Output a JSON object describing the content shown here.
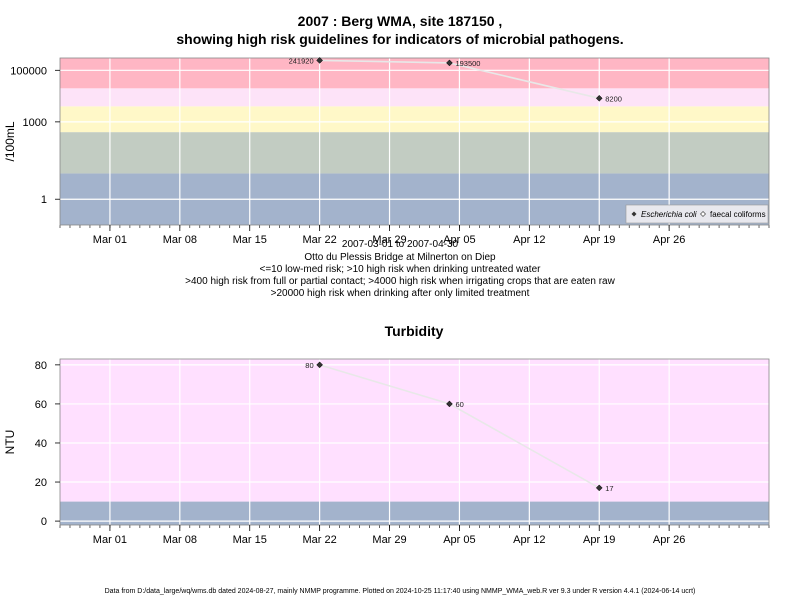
{
  "header": {
    "title_line1": "2007 : Berg WMA, site 187150 ,",
    "title_line2": "showing high risk guidelines for indicators of microbial pathogens."
  },
  "captions": [
    "2007-03-01 to 2007-04-30",
    "Otto du Plessis Bridge at Milnerton on Diep",
    "<=10 low-med risk; >10 high risk when drinking untreated water",
    ">400 high risk from full or partial contact; >4000 high risk when irrigating crops that are eaten raw",
    ">20000 high risk when drinking after only limited treatment"
  ],
  "footer": "Data from D:/data_large/wq/wms.db dated 2024-08-27, mainly NMMP programme. Plotted on 2024-10-25 11:17:40 using NMMP_WMA_web.R ver 9.3 under R version 4.4.1 (2024-06-14 ucrt)",
  "chart_data": [
    {
      "type": "line",
      "title": "",
      "ylabel": "/100mL",
      "y_scale": "log10",
      "ylim": [
        0.1,
        300000
      ],
      "xlim": [
        "2007-02-24",
        "2007-05-06"
      ],
      "x_ticks": [
        "2007-03-01",
        "2007-03-08",
        "2007-03-15",
        "2007-03-22",
        "2007-03-29",
        "2007-04-05",
        "2007-04-12",
        "2007-04-19",
        "2007-04-26"
      ],
      "x_tick_labels": [
        "Mar 01",
        "Mar 08",
        "Mar 15",
        "Mar 22",
        "Mar 29",
        "Apr 05",
        "Apr 12",
        "Apr 19",
        "Apr 26"
      ],
      "y_ticks": [
        1,
        1000,
        100000
      ],
      "y_tick_labels": [
        "1",
        "1000",
        "100000"
      ],
      "bands": [
        {
          "from": 0.1,
          "to": 10,
          "color": "#a3b3cc"
        },
        {
          "from": 10,
          "to": 400,
          "color": "#c2ccc2"
        },
        {
          "from": 400,
          "to": 4000,
          "color": "#fff8c8"
        },
        {
          "from": 4000,
          "to": 20000,
          "color": "#fde3f8"
        },
        {
          "from": 20000,
          "to": 300000,
          "color": "#ffb6c4"
        }
      ],
      "series": [
        {
          "name": "Escherichia coli",
          "marker": "filled-diamond",
          "x": [
            "2007-03-22",
            "2007-04-04",
            "2007-04-19"
          ],
          "y": [
            241920,
            193500,
            8200
          ],
          "labels": [
            "241920",
            "193500",
            "8200"
          ]
        },
        {
          "name": "faecal coliforms",
          "marker": "open-diamond",
          "x": [],
          "y": []
        }
      ],
      "legend": "bottom-right",
      "grid": true
    },
    {
      "type": "line",
      "title": "Turbidity",
      "ylabel": "NTU",
      "y_scale": "linear",
      "ylim": [
        -2,
        83
      ],
      "xlim": [
        "2007-02-24",
        "2007-05-06"
      ],
      "x_ticks": [
        "2007-03-01",
        "2007-03-08",
        "2007-03-15",
        "2007-03-22",
        "2007-03-29",
        "2007-04-05",
        "2007-04-12",
        "2007-04-19",
        "2007-04-26"
      ],
      "x_tick_labels": [
        "Mar 01",
        "Mar 08",
        "Mar 15",
        "Mar 22",
        "Mar 29",
        "Apr 05",
        "Apr 12",
        "Apr 19",
        "Apr 26"
      ],
      "y_ticks": [
        0,
        20,
        40,
        60,
        80
      ],
      "y_tick_labels": [
        "0",
        "20",
        "40",
        "60",
        "80"
      ],
      "bands": [
        {
          "from": -2,
          "to": 10,
          "color": "#a3b3cc"
        },
        {
          "from": 10,
          "to": 83,
          "color": "#ffe0ff"
        }
      ],
      "series": [
        {
          "name": "Turbidity",
          "marker": "filled-diamond",
          "x": [
            "2007-03-22",
            "2007-04-04",
            "2007-04-19"
          ],
          "y": [
            80,
            60,
            17
          ],
          "labels": [
            "80",
            "60",
            "17"
          ]
        }
      ],
      "grid": true
    }
  ]
}
